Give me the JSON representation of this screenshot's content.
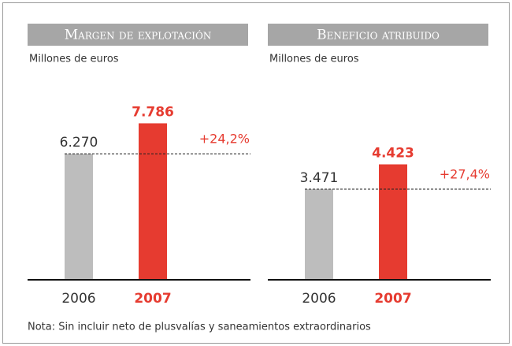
{
  "chart_data": [
    {
      "type": "bar",
      "title": "Margen de explotación",
      "subtitle": "Millones de euros",
      "categories": [
        "2006",
        "2007"
      ],
      "values": [
        6270,
        7786
      ],
      "value_labels": [
        "6.270",
        "7.786"
      ],
      "colors": [
        "#bdbdbd",
        "#e63b30"
      ],
      "ylim": [
        0,
        10000
      ],
      "annotation": "+24,2%"
    },
    {
      "type": "bar",
      "title": "Beneficio atribuido",
      "subtitle": "Millones de euros",
      "categories": [
        "2006",
        "2007"
      ],
      "values": [
        3471,
        4423
      ],
      "value_labels": [
        "3.471",
        "4.423"
      ],
      "colors": [
        "#bdbdbd",
        "#e63b30"
      ],
      "ylim": [
        0,
        7700
      ],
      "annotation": "+27,4%"
    }
  ],
  "note": "Nota: Sin incluir neto de plusvalías y saneamientos extraordinarios"
}
